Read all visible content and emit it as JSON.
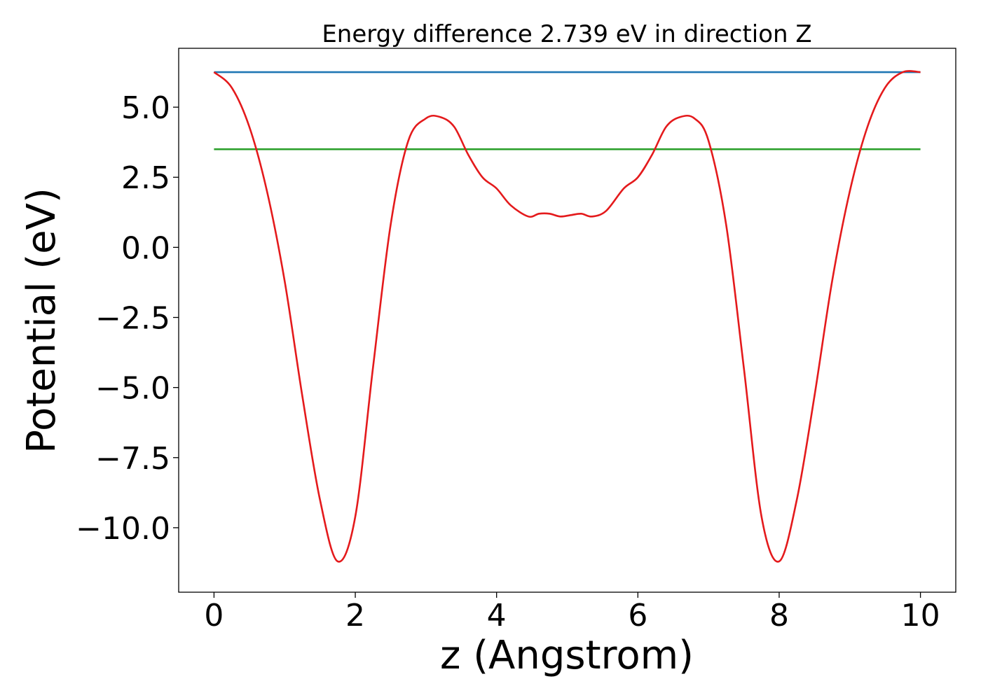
{
  "chart_data": {
    "type": "line",
    "title": "Energy difference 2.739 eV in direction Z",
    "xlabel": "z (Angstrom)",
    "ylabel": "Potential (eV)",
    "xlim": [
      -0.5,
      10.5
    ],
    "ylim": [
      -12.3,
      7.1
    ],
    "xticks": [
      0,
      2,
      4,
      6,
      8,
      10
    ],
    "xtick_labels": [
      "0",
      "2",
      "4",
      "6",
      "8",
      "10"
    ],
    "yticks": [
      5.0,
      2.5,
      0.0,
      -2.5,
      -5.0,
      -7.5,
      -10.0
    ],
    "ytick_labels": [
      "5.0",
      "2.5",
      "0.0",
      "−2.5",
      "−5.0",
      "−7.5",
      "−10.0"
    ],
    "grid": false,
    "legend": "none",
    "series": [
      {
        "color": "#1f77b4",
        "x": [
          0.0,
          10.0
        ],
        "y": [
          6.25,
          6.25
        ]
      },
      {
        "color": "#2ca02c",
        "x": [
          0.0,
          10.0
        ],
        "y": [
          3.5,
          3.5
        ]
      },
      {
        "color": "#e41a1c",
        "x": [
          0.0,
          0.25,
          0.5,
          0.75,
          1.0,
          1.25,
          1.5,
          1.75,
          2.0,
          2.25,
          2.5,
          2.75,
          3.0,
          3.2,
          3.4,
          3.6,
          3.8,
          4.0,
          4.2,
          4.45,
          4.6,
          4.75,
          4.9,
          5.05,
          5.2,
          5.35,
          5.55,
          5.8,
          6.0,
          6.2,
          6.4,
          6.6,
          6.8,
          7.0,
          7.25,
          7.5,
          7.75,
          8.0,
          8.25,
          8.5,
          8.75,
          9.0,
          9.25,
          9.5,
          9.75,
          10.0
        ],
        "y": [
          6.25,
          5.7,
          4.3,
          2.0,
          -1.2,
          -5.3,
          -9.0,
          -11.2,
          -9.6,
          -4.3,
          0.8,
          3.8,
          4.6,
          4.65,
          4.3,
          3.3,
          2.5,
          2.1,
          1.5,
          1.1,
          1.2,
          1.2,
          1.1,
          1.15,
          1.2,
          1.1,
          1.3,
          2.1,
          2.5,
          3.3,
          4.3,
          4.65,
          4.6,
          3.8,
          0.8,
          -4.3,
          -9.6,
          -11.2,
          -9.0,
          -5.3,
          -1.2,
          2.0,
          4.3,
          5.7,
          6.25,
          6.25
        ]
      }
    ]
  }
}
